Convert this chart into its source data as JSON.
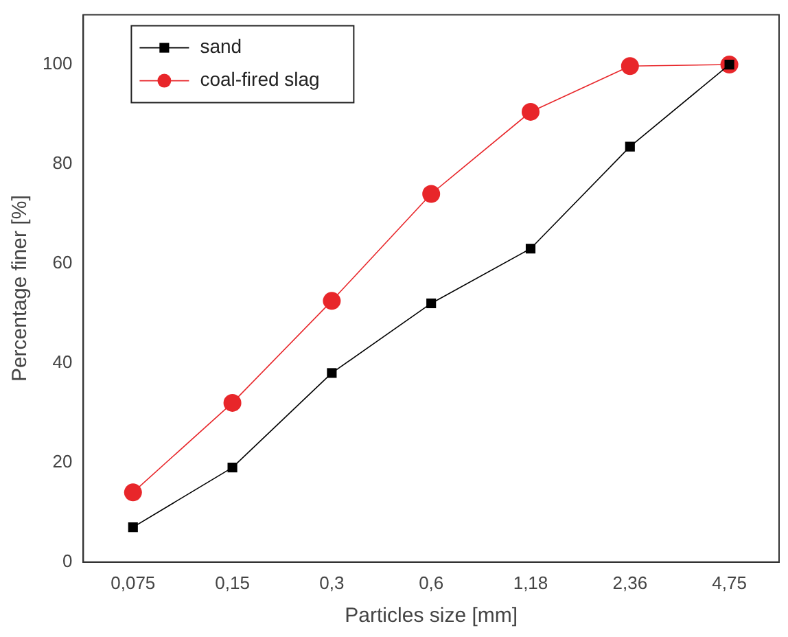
{
  "chart_data": {
    "type": "line",
    "xlabel": "Particles size [mm]",
    "ylabel": "Percentage finer [%]",
    "categories": [
      "0,075",
      "0,15",
      "0,3",
      "0,6",
      "1,18",
      "2,36",
      "4,75"
    ],
    "ylim": [
      0,
      110
    ],
    "yticks": [
      0,
      20,
      40,
      60,
      80,
      100
    ],
    "grid": false,
    "legend": "top left",
    "line_style": "solid",
    "series": [
      {
        "name": "sand",
        "color": "#000000",
        "marker": "square",
        "values": [
          7,
          19,
          38,
          52,
          63,
          83.5,
          100
        ]
      },
      {
        "name": "coal-fired slag",
        "color": "#e8262a",
        "marker": "circle",
        "values": [
          14,
          32,
          52.5,
          74,
          90.5,
          99.7,
          100
        ]
      }
    ]
  }
}
